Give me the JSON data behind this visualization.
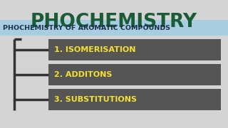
{
  "bg_color": "#d4d4d4",
  "title": "PHOCHEMISTRY",
  "title_color": "#1a5c38",
  "subtitle": "PHOCHEMISTRY OF AROMATIC COMPOUNDS",
  "subtitle_bg": "#a8cce0",
  "subtitle_color": "#1a3050",
  "items": [
    "1. ISOMERISATION",
    "2. ADDITONS",
    "3. SUBSTITUTIONS"
  ],
  "item_bg": "#555555",
  "item_color": "#f5e030",
  "bracket_color": "#333333",
  "figsize": [
    3.2,
    1.8
  ],
  "dpi": 100
}
